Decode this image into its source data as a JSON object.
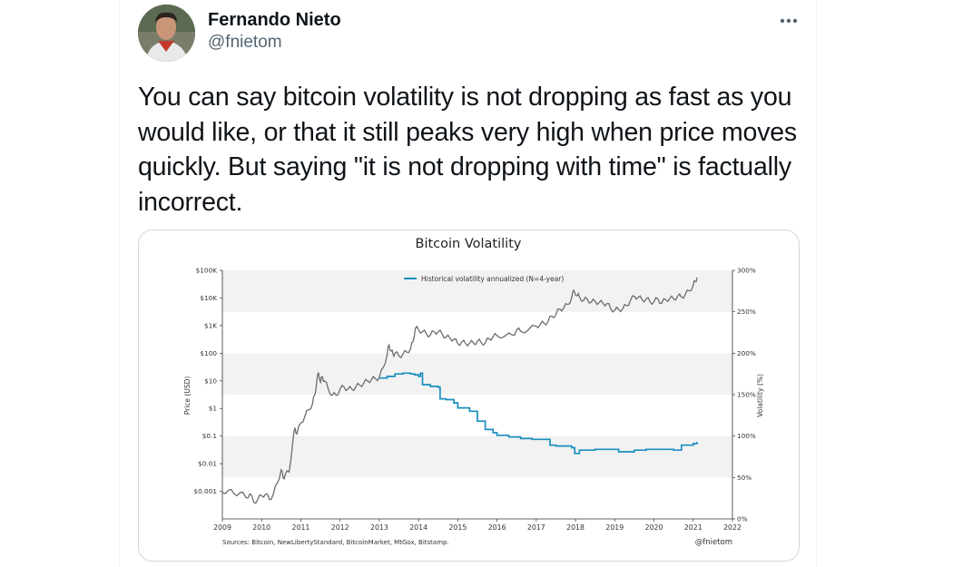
{
  "tweet": {
    "display_name": "Fernando Nieto",
    "handle": "@fnietom",
    "text": "You can say bitcoin volatility is not dropping as fast as you would like, or that it still peaks very high when price moves quickly. But saying \"it is not dropping with time\" is factually incorrect.",
    "more_icon": "more-horizontal-icon"
  },
  "chart_data": {
    "type": "line",
    "title": "Bitcoin Volatility",
    "xlabel": "",
    "ylabel": "Price (USD)",
    "y2label": "Volatility (%)",
    "x_ticks": [
      "2009",
      "2010",
      "2011",
      "2012",
      "2013",
      "2014",
      "2015",
      "2016",
      "2017",
      "2018",
      "2019",
      "2020",
      "2021",
      "2022"
    ],
    "y_ticks": [
      "$0.001",
      "$0.01",
      "$0.1",
      "$1",
      "$10",
      "$100",
      "$1K",
      "$10K",
      "$100K"
    ],
    "y2_ticks": [
      "0%",
      "50%",
      "100%",
      "150%",
      "200%",
      "250%",
      "300%"
    ],
    "y_scale": "log",
    "ylim": [
      0.0001,
      100000
    ],
    "y2lim": [
      0,
      300
    ],
    "xlim": [
      2009,
      2022
    ],
    "legend": "top-center",
    "grid": "horizontal bands",
    "sources": "Sources: Bitcoin, NewLibertyStandard, BitcoinMarket, MtGox, Bitstamp.",
    "credit": "@fnietom",
    "series": [
      {
        "axis": "left",
        "color": "#6d6d6d",
        "x": [
          2009.0,
          2009.15,
          2009.3,
          2009.45,
          2009.6,
          2009.7,
          2009.8,
          2009.9,
          2010.0,
          2010.1,
          2010.2,
          2010.3,
          2010.4,
          2010.5,
          2010.55,
          2010.6,
          2010.7,
          2010.8,
          2010.85,
          2010.9,
          2011.0,
          2011.1,
          2011.2,
          2011.3,
          2011.35,
          2011.4,
          2011.45,
          2011.5,
          2011.55,
          2011.6,
          2011.7,
          2011.8,
          2011.9,
          2012.0,
          2012.1,
          2012.2,
          2012.3,
          2012.4,
          2012.5,
          2012.6,
          2012.7,
          2012.8,
          2012.9,
          2013.0,
          2013.1,
          2013.2,
          2013.25,
          2013.3,
          2013.35,
          2013.4,
          2013.5,
          2013.6,
          2013.7,
          2013.8,
          2013.85,
          2013.92,
          2014.0,
          2014.1,
          2014.2,
          2014.3,
          2014.4,
          2014.5,
          2014.6,
          2014.7,
          2014.8,
          2014.9,
          2015.0,
          2015.1,
          2015.2,
          2015.3,
          2015.4,
          2015.5,
          2015.6,
          2015.7,
          2015.8,
          2015.9,
          2016.0,
          2016.2,
          2016.4,
          2016.5,
          2016.6,
          2016.8,
          2017.0,
          2017.1,
          2017.2,
          2017.3,
          2017.4,
          2017.5,
          2017.6,
          2017.7,
          2017.8,
          2017.9,
          2017.96,
          2018.05,
          2018.1,
          2018.2,
          2018.3,
          2018.4,
          2018.5,
          2018.6,
          2018.7,
          2018.8,
          2018.9,
          2019.0,
          2019.1,
          2019.2,
          2019.3,
          2019.4,
          2019.5,
          2019.6,
          2019.7,
          2019.8,
          2019.9,
          2020.0,
          2020.1,
          2020.2,
          2020.3,
          2020.4,
          2020.5,
          2020.6,
          2020.7,
          2020.8,
          2020.9,
          2021.0,
          2021.05,
          2021.1
        ],
        "values": [
          0.0009,
          0.0011,
          0.0008,
          0.0009,
          0.0006,
          0.0008,
          0.0004,
          0.0005,
          0.0007,
          0.0008,
          0.0005,
          0.0008,
          0.002,
          0.006,
          0.003,
          0.004,
          0.005,
          0.07,
          0.2,
          0.12,
          0.3,
          0.5,
          0.9,
          1.5,
          3,
          8,
          20,
          9,
          14,
          10,
          5,
          3,
          3,
          5,
          6,
          5,
          5,
          6,
          7,
          8,
          10,
          11,
          12,
          13,
          30,
          90,
          200,
          120,
          90,
          100,
          80,
          90,
          110,
          150,
          250,
          800,
          700,
          600,
          500,
          450,
          600,
          600,
          500,
          380,
          350,
          320,
          220,
          250,
          220,
          230,
          230,
          270,
          240,
          235,
          330,
          400,
          430,
          420,
          450,
          700,
          620,
          700,
          950,
          1100,
          1200,
          1400,
          2200,
          2500,
          4000,
          4300,
          5800,
          10000,
          19000,
          12000,
          11000,
          8000,
          9000,
          7000,
          7500,
          6700,
          6400,
          6300,
          4000,
          3600,
          3800,
          4000,
          5300,
          8000,
          11500,
          10500,
          8500,
          9200,
          7300,
          7200,
          9300,
          6500,
          8700,
          9500,
          9200,
          11500,
          10700,
          13500,
          18000,
          29000,
          40000,
          55000
        ]
      },
      {
        "axis": "right",
        "color": "#1a8fbf",
        "name": "Historical volatility annualized (N=4-year)",
        "x": [
          2013.0,
          2013.2,
          2013.4,
          2013.6,
          2013.8,
          2013.9,
          2014.0,
          2014.05,
          2014.1,
          2014.3,
          2014.5,
          2014.55,
          2014.7,
          2014.9,
          2015.0,
          2015.3,
          2015.5,
          2015.7,
          2015.9,
          2016.0,
          2016.3,
          2016.6,
          2016.9,
          2017.2,
          2017.35,
          2017.5,
          2017.7,
          2017.9,
          2017.98,
          2018.1,
          2018.3,
          2018.5,
          2018.8,
          2019.0,
          2019.1,
          2019.2,
          2019.5,
          2019.8,
          2020.0,
          2020.3,
          2020.5,
          2020.7,
          2020.9,
          2021.0,
          2021.1
        ],
        "values": [
          170,
          172,
          175,
          176,
          175,
          174,
          172,
          176,
          162,
          160,
          159,
          145,
          144,
          140,
          134,
          130,
          118,
          108,
          104,
          101,
          99,
          97,
          96,
          96,
          89,
          88,
          88,
          86,
          79,
          83,
          83,
          84,
          84,
          84,
          81,
          81,
          83,
          84,
          84,
          84,
          83,
          89,
          89,
          91,
          93
        ]
      }
    ]
  }
}
